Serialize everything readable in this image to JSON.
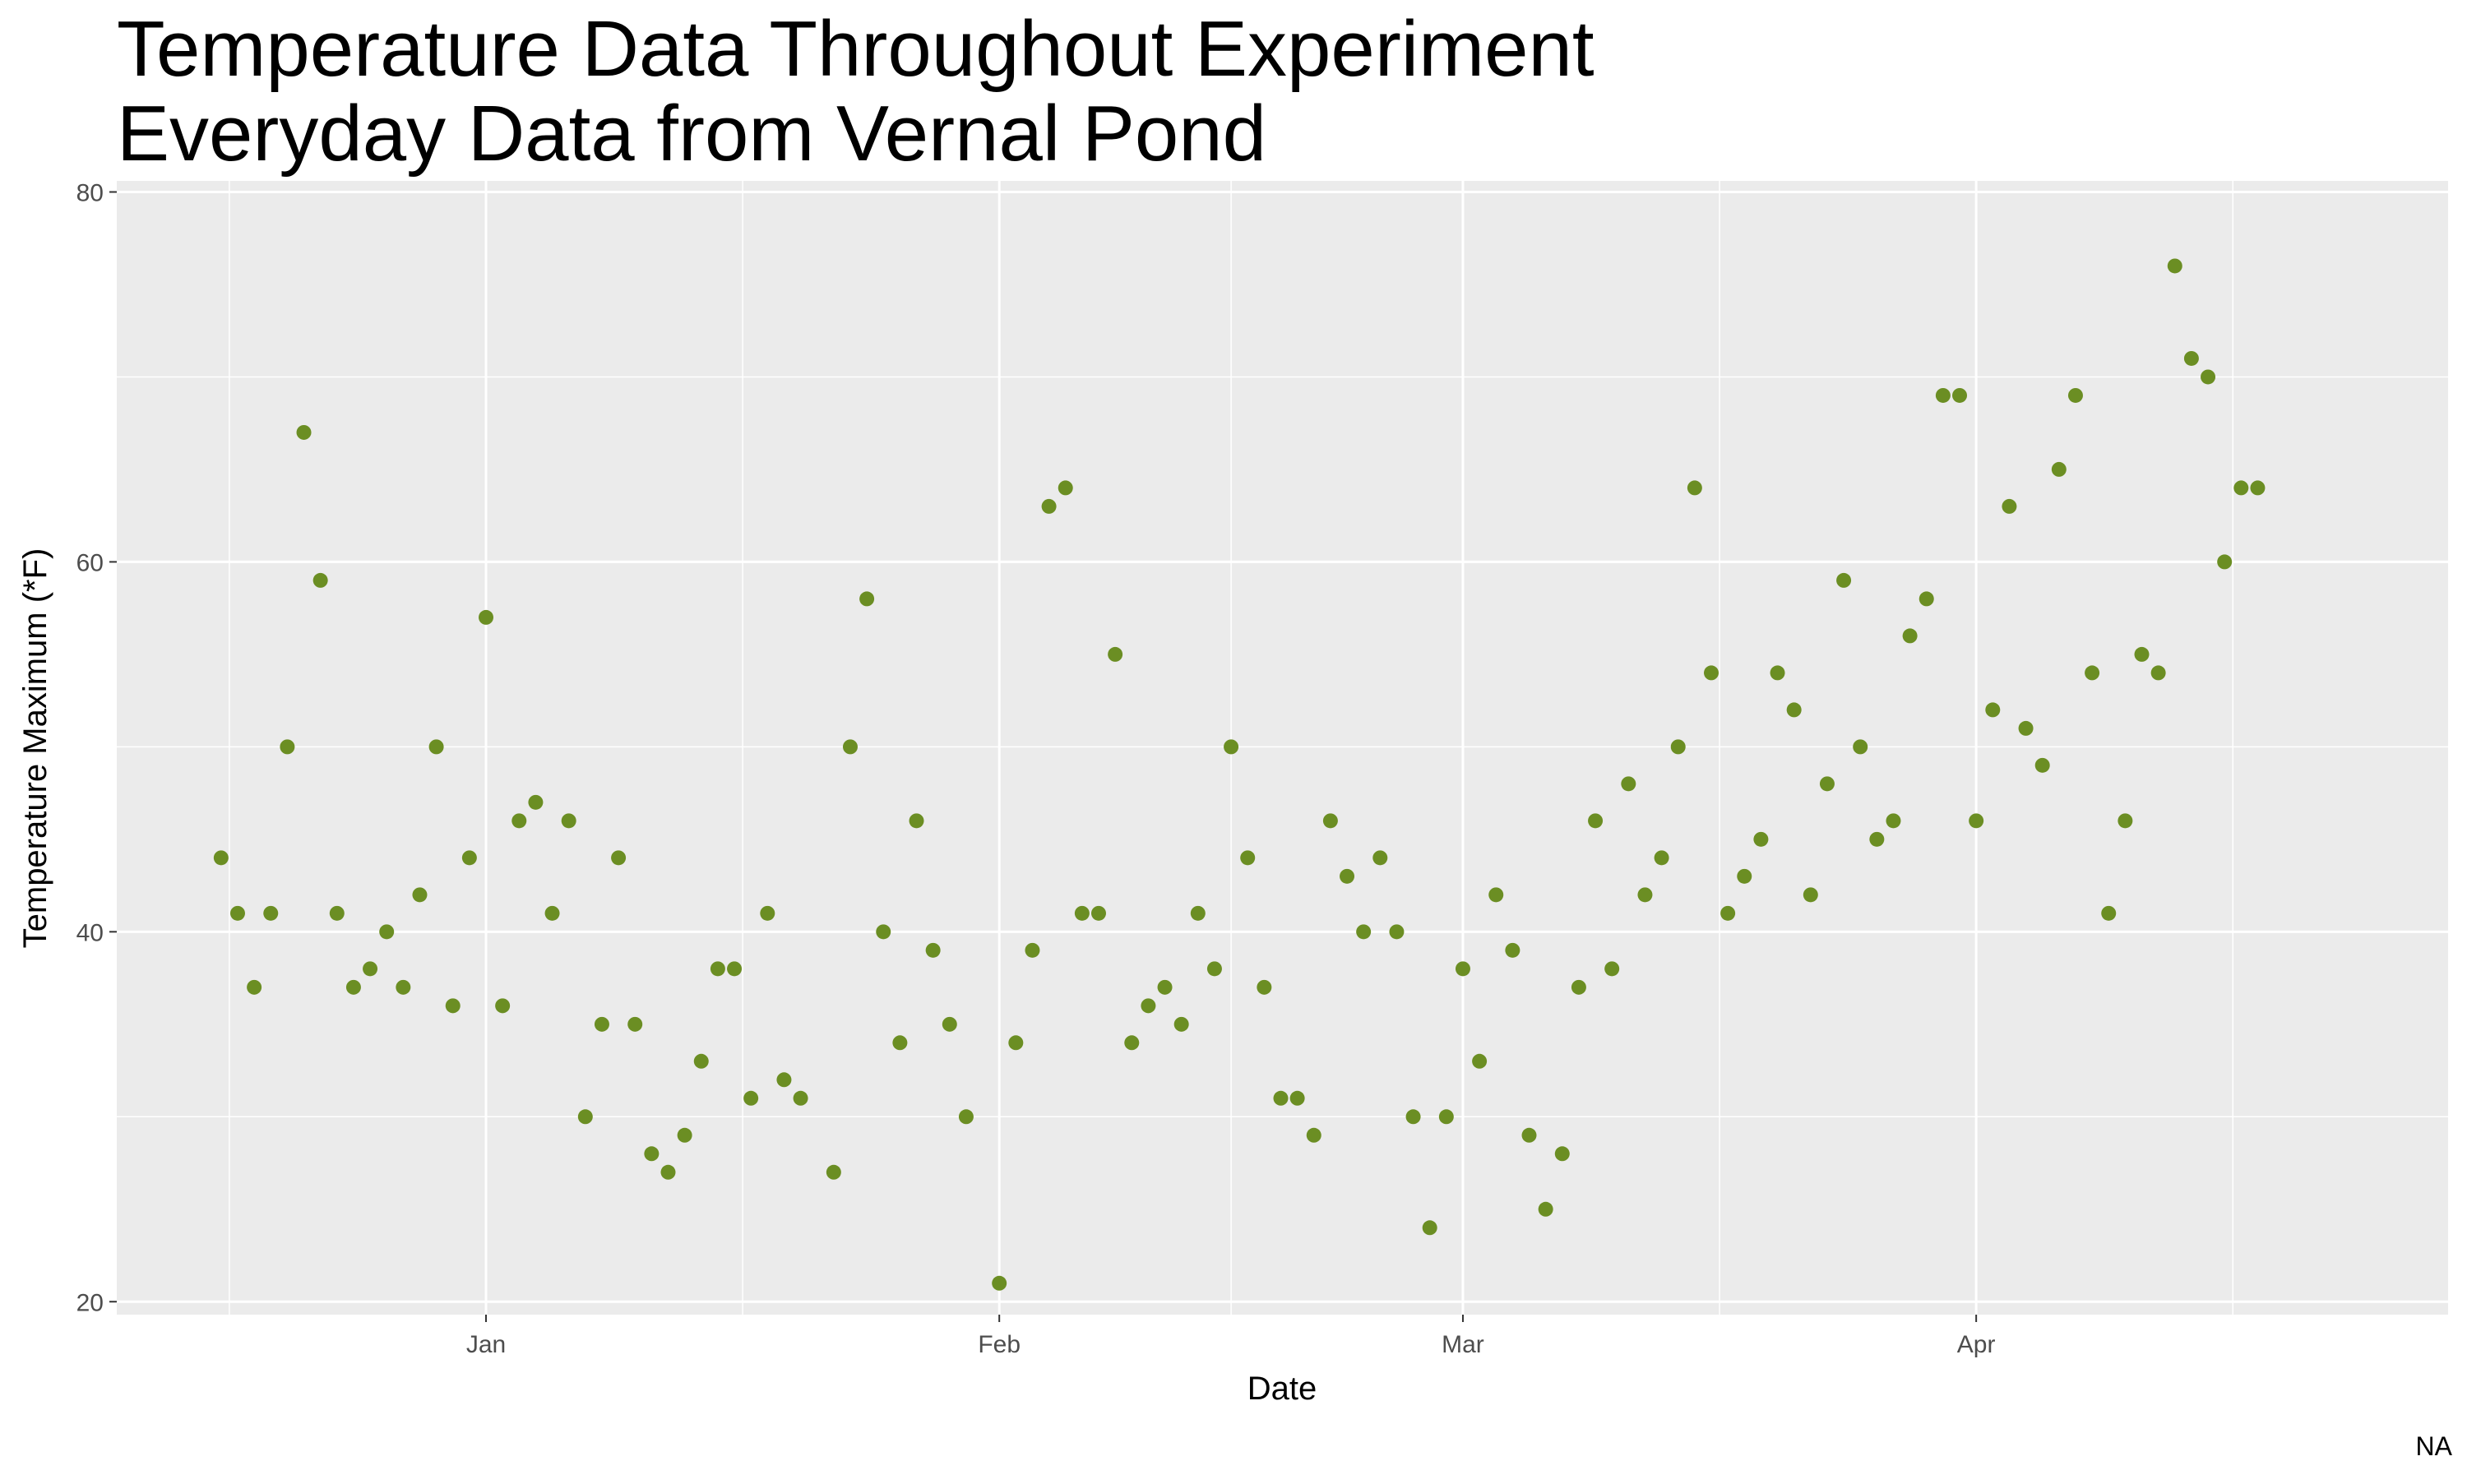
{
  "chart_data": {
    "type": "scatter",
    "title": "Temperature Data Throughout Experiment",
    "subtitle": "Everyday Data from Vernal Pond",
    "x_label": "Date",
    "y_label": "Temperature Maximum (*F)",
    "caption": "NA",
    "x": [
      -16,
      -15,
      -14,
      -13,
      -12,
      -11,
      -10,
      -9,
      -8,
      -7,
      -6,
      -5,
      -4,
      -3,
      -2,
      -1,
      0,
      1,
      2,
      3,
      4,
      5,
      6,
      7,
      8,
      9,
      10,
      11,
      12,
      13,
      14,
      15,
      16,
      17,
      18,
      19,
      21,
      22,
      23,
      24,
      25,
      26,
      27,
      28,
      29,
      31,
      32,
      33,
      34,
      35,
      36,
      37,
      38,
      39,
      40,
      41,
      42,
      43,
      44,
      45,
      46,
      47,
      48,
      49,
      50,
      51,
      52,
      53,
      54,
      55,
      56,
      57,
      58,
      59,
      60,
      61,
      62,
      63,
      64,
      65,
      66,
      67,
      68,
      69,
      70,
      71,
      72,
      73,
      74,
      75,
      76,
      77,
      78,
      79,
      80,
      81,
      82,
      83,
      84,
      85,
      86,
      87,
      88,
      89,
      90,
      91,
      92,
      93,
      94,
      95,
      96,
      97,
      98,
      99,
      100,
      101,
      102,
      103,
      104,
      105,
      106,
      107
    ],
    "values": [
      44,
      41,
      37,
      41,
      50,
      67,
      59,
      41,
      37,
      38,
      40,
      37,
      42,
      50,
      36,
      44,
      57,
      36,
      46,
      47,
      41,
      46,
      30,
      35,
      44,
      35,
      28,
      27,
      29,
      33,
      38,
      38,
      31,
      41,
      32,
      31,
      27,
      50,
      58,
      40,
      34,
      46,
      39,
      35,
      30,
      21,
      34,
      39,
      63,
      64,
      41,
      41,
      55,
      34,
      36,
      37,
      35,
      41,
      38,
      50,
      44,
      37,
      31,
      31,
      29,
      46,
      43,
      40,
      44,
      40,
      30,
      24,
      30,
      38,
      33,
      42,
      39,
      29,
      25,
      28,
      37,
      46,
      38,
      48,
      42,
      44,
      50,
      64,
      54,
      41,
      43,
      45,
      54,
      52,
      42,
      48,
      59,
      50,
      45,
      46,
      56,
      58,
      69,
      69,
      46,
      52,
      63,
      51,
      49,
      65,
      69,
      54,
      41,
      46,
      55,
      54,
      76,
      71,
      70,
      60,
      64,
      64
    ],
    "color": "#6b8e23",
    "xlim": [
      -22.3,
      118.5
    ],
    "xticks": [
      {
        "value": 0,
        "label": "Jan"
      },
      {
        "value": 31,
        "label": "Feb"
      },
      {
        "value": 59,
        "label": "Mar"
      },
      {
        "value": 90,
        "label": "Apr"
      }
    ],
    "ylim": [
      19.3,
      80.6
    ],
    "yticks": [
      20,
      40,
      60,
      80
    ],
    "grid": true
  }
}
